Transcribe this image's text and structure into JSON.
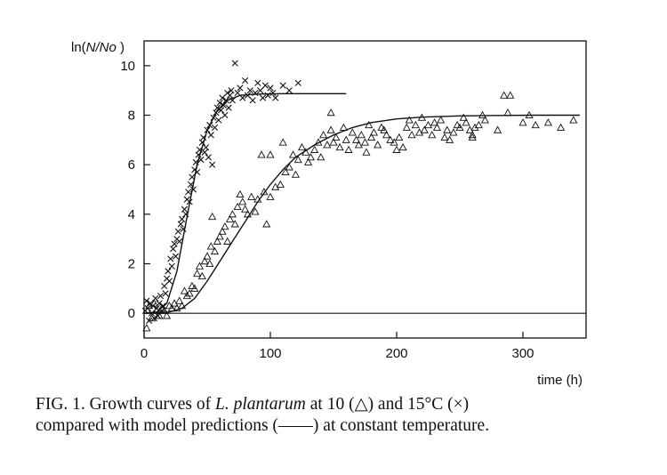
{
  "chart_data": {
    "type": "scatter",
    "ylabel_prefix": "ln(",
    "ylabel_var": "N/No",
    "ylabel_suffix": " )",
    "xlabel": "time (h)",
    "xlim": [
      0,
      350
    ],
    "ylim": [
      -1,
      11
    ],
    "x_ticks": [
      "0",
      "100",
      "200",
      "300"
    ],
    "x_tick_values": [
      0,
      100,
      200,
      300
    ],
    "y_ticks": [
      "0",
      "2",
      "4",
      "6",
      "8",
      "10"
    ],
    "y_tick_values": [
      0,
      2,
      4,
      6,
      8,
      10
    ],
    "grid": false,
    "colors": {
      "ink": "#111111",
      "background": "#ffffff"
    },
    "reference_line": {
      "y": 0,
      "x_start": 0,
      "x_end": 350
    },
    "series": [
      {
        "marker": "triangle",
        "points": [
          [
            2,
            -0.6
          ],
          [
            4,
            0.3
          ],
          [
            6,
            -0.2
          ],
          [
            8,
            0.4
          ],
          [
            10,
            0.1
          ],
          [
            12,
            -0.1
          ],
          [
            14,
            0.2
          ],
          [
            16,
            0.1
          ],
          [
            18,
            -0.1
          ],
          [
            20,
            0.3
          ],
          [
            22,
            0.2
          ],
          [
            24,
            0.4
          ],
          [
            26,
            0.2
          ],
          [
            28,
            0.5
          ],
          [
            30,
            0.3
          ],
          [
            32,
            0.9
          ],
          [
            34,
            0.7
          ],
          [
            36,
            0.8
          ],
          [
            38,
            1.1
          ],
          [
            40,
            1.0
          ],
          [
            42,
            1.6
          ],
          [
            44,
            1.9
          ],
          [
            46,
            1.5
          ],
          [
            48,
            2.1
          ],
          [
            50,
            2.3
          ],
          [
            52,
            2.0
          ],
          [
            53,
            2.7
          ],
          [
            54,
            3.9
          ],
          [
            56,
            2.5
          ],
          [
            58,
            2.9
          ],
          [
            60,
            3.1
          ],
          [
            62,
            3.3
          ],
          [
            64,
            3.5
          ],
          [
            66,
            2.9
          ],
          [
            68,
            3.8
          ],
          [
            70,
            4.0
          ],
          [
            72,
            3.6
          ],
          [
            74,
            4.3
          ],
          [
            76,
            4.8
          ],
          [
            78,
            4.5
          ],
          [
            80,
            4.2
          ],
          [
            82,
            4.0
          ],
          [
            85,
            4.7
          ],
          [
            88,
            4.1
          ],
          [
            90,
            4.6
          ],
          [
            93,
            6.4
          ],
          [
            95,
            4.9
          ],
          [
            97,
            3.6
          ],
          [
            100,
            4.7
          ],
          [
            100,
            6.4
          ],
          [
            104,
            5.1
          ],
          [
            108,
            5.2
          ],
          [
            110,
            6.9
          ],
          [
            112,
            5.7
          ],
          [
            115,
            5.9
          ],
          [
            118,
            6.4
          ],
          [
            120,
            5.6
          ],
          [
            122,
            6.2
          ],
          [
            125,
            6.7
          ],
          [
            128,
            6.5
          ],
          [
            130,
            6.1
          ],
          [
            132,
            6.3
          ],
          [
            135,
            6.6
          ],
          [
            138,
            6.9
          ],
          [
            140,
            6.3
          ],
          [
            142,
            7.2
          ],
          [
            145,
            6.8
          ],
          [
            148,
            7.4
          ],
          [
            150,
            6.9
          ],
          [
            152,
            7.1
          ],
          [
            155,
            6.7
          ],
          [
            158,
            7.5
          ],
          [
            160,
            7.0
          ],
          [
            162,
            6.6
          ],
          [
            165,
            7.3
          ],
          [
            168,
            7.0
          ],
          [
            170,
            6.8
          ],
          [
            172,
            7.2
          ],
          [
            175,
            6.9
          ],
          [
            178,
            7.6
          ],
          [
            180,
            7.1
          ],
          [
            182,
            7.3
          ],
          [
            185,
            6.8
          ],
          [
            188,
            7.5
          ],
          [
            190,
            7.4
          ],
          [
            192,
            7.2
          ],
          [
            195,
            7.0
          ],
          [
            198,
            6.9
          ],
          [
            200,
            6.6
          ],
          [
            202,
            7.1
          ],
          [
            205,
            6.7
          ],
          [
            208,
            7.5
          ],
          [
            210,
            7.8
          ],
          [
            212,
            7.2
          ],
          [
            215,
            7.6
          ],
          [
            218,
            7.3
          ],
          [
            220,
            7.9
          ],
          [
            222,
            7.4
          ],
          [
            225,
            7.6
          ],
          [
            228,
            7.2
          ],
          [
            230,
            7.7
          ],
          [
            232,
            7.5
          ],
          [
            235,
            7.8
          ],
          [
            238,
            7.1
          ],
          [
            240,
            7.4
          ],
          [
            242,
            7.0
          ],
          [
            245,
            7.3
          ],
          [
            248,
            7.6
          ],
          [
            250,
            7.5
          ],
          [
            253,
            7.9
          ],
          [
            255,
            7.7
          ],
          [
            258,
            7.4
          ],
          [
            260,
            7.1
          ],
          [
            262,
            7.5
          ],
          [
            265,
            7.6
          ],
          [
            268,
            8.0
          ],
          [
            270,
            7.8
          ],
          [
            280,
            7.4
          ],
          [
            285,
            8.8
          ],
          [
            288,
            8.1
          ],
          [
            290,
            8.8
          ],
          [
            300,
            7.7
          ],
          [
            305,
            8.0
          ],
          [
            310,
            7.6
          ],
          [
            320,
            7.7
          ],
          [
            330,
            7.5
          ],
          [
            340,
            7.8
          ],
          [
            260,
            7.2
          ],
          [
            148,
            8.1
          ],
          [
            176,
            6.5
          ]
        ]
      },
      {
        "marker": "cross",
        "points": [
          [
            1,
            0.1
          ],
          [
            2,
            0.5
          ],
          [
            3,
            0.2
          ],
          [
            4,
            -0.3
          ],
          [
            5,
            0.4
          ],
          [
            6,
            0.0
          ],
          [
            7,
            0.3
          ],
          [
            8,
            -0.2
          ],
          [
            9,
            0.6
          ],
          [
            10,
            0.2
          ],
          [
            11,
            -0.1
          ],
          [
            12,
            0.4
          ],
          [
            13,
            0.7
          ],
          [
            14,
            0.1
          ],
          [
            15,
            0.3
          ],
          [
            16,
            1.1
          ],
          [
            17,
            0.8
          ],
          [
            18,
            1.4
          ],
          [
            19,
            1.7
          ],
          [
            20,
            1.3
          ],
          [
            21,
            2.2
          ],
          [
            22,
            1.9
          ],
          [
            23,
            2.6
          ],
          [
            24,
            2.8
          ],
          [
            25,
            2.3
          ],
          [
            26,
            3.0
          ],
          [
            27,
            3.3
          ],
          [
            28,
            2.9
          ],
          [
            29,
            3.6
          ],
          [
            30,
            3.8
          ],
          [
            31,
            3.4
          ],
          [
            32,
            4.2
          ],
          [
            33,
            4.0
          ],
          [
            34,
            4.6
          ],
          [
            35,
            4.9
          ],
          [
            36,
            4.5
          ],
          [
            37,
            5.2
          ],
          [
            38,
            5.5
          ],
          [
            39,
            5.0
          ],
          [
            40,
            5.8
          ],
          [
            41,
            6.1
          ],
          [
            42,
            5.7
          ],
          [
            43,
            6.4
          ],
          [
            44,
            6.6
          ],
          [
            45,
            6.2
          ],
          [
            46,
            6.9
          ],
          [
            47,
            7.1
          ],
          [
            48,
            6.5
          ],
          [
            49,
            6.7
          ],
          [
            50,
            7.4
          ],
          [
            51,
            6.3
          ],
          [
            52,
            7.6
          ],
          [
            53,
            7.2
          ],
          [
            54,
            6.0
          ],
          [
            55,
            7.9
          ],
          [
            56,
            7.5
          ],
          [
            57,
            8.1
          ],
          [
            58,
            8.3
          ],
          [
            59,
            7.8
          ],
          [
            60,
            8.5
          ],
          [
            61,
            8.2
          ],
          [
            62,
            8.7
          ],
          [
            63,
            8.4
          ],
          [
            64,
            8.0
          ],
          [
            65,
            8.6
          ],
          [
            66,
            8.9
          ],
          [
            67,
            8.3
          ],
          [
            68,
            8.8
          ],
          [
            69,
            9.0
          ],
          [
            70,
            8.6
          ],
          [
            72,
            10.1
          ],
          [
            74,
            8.9
          ],
          [
            76,
            9.1
          ],
          [
            78,
            8.7
          ],
          [
            80,
            9.4
          ],
          [
            82,
            8.8
          ],
          [
            84,
            9.0
          ],
          [
            86,
            8.6
          ],
          [
            88,
            8.9
          ],
          [
            90,
            9.3
          ],
          [
            92,
            9.0
          ],
          [
            94,
            8.7
          ],
          [
            96,
            9.2
          ],
          [
            98,
            8.8
          ],
          [
            100,
            9.1
          ],
          [
            102,
            8.9
          ],
          [
            104,
            8.7
          ],
          [
            110,
            9.2
          ],
          [
            115,
            9.0
          ],
          [
            122,
            9.3
          ]
        ]
      }
    ],
    "model_curves": [
      {
        "points": [
          [
            0,
            0
          ],
          [
            10,
            0.05
          ],
          [
            18,
            0.4
          ],
          [
            26,
            1.7
          ],
          [
            34,
            3.9
          ],
          [
            42,
            6.0
          ],
          [
            50,
            7.4
          ],
          [
            58,
            8.2
          ],
          [
            66,
            8.6
          ],
          [
            76,
            8.8
          ],
          [
            90,
            8.85
          ],
          [
            110,
            8.87
          ],
          [
            130,
            8.87
          ],
          [
            160,
            8.87
          ]
        ]
      },
      {
        "points": [
          [
            0,
            0
          ],
          [
            20,
            0.05
          ],
          [
            30,
            0.2
          ],
          [
            40,
            0.6
          ],
          [
            50,
            1.3
          ],
          [
            60,
            2.1
          ],
          [
            70,
            2.9
          ],
          [
            80,
            3.7
          ],
          [
            90,
            4.5
          ],
          [
            100,
            5.2
          ],
          [
            110,
            5.8
          ],
          [
            120,
            6.3
          ],
          [
            135,
            6.8
          ],
          [
            150,
            7.2
          ],
          [
            165,
            7.5
          ],
          [
            180,
            7.7
          ],
          [
            200,
            7.85
          ],
          [
            220,
            7.92
          ],
          [
            250,
            7.97
          ],
          [
            280,
            7.99
          ],
          [
            310,
            8.0
          ],
          [
            345,
            8.0
          ]
        ]
      }
    ]
  },
  "caption": {
    "line1_a": "FIG. 1. Growth curves of ",
    "line1_species": "L. plantarum",
    "line1_b": " at 10 (△) and 15°C (×)",
    "line2": "compared with model predictions (——) at constant temperature."
  }
}
